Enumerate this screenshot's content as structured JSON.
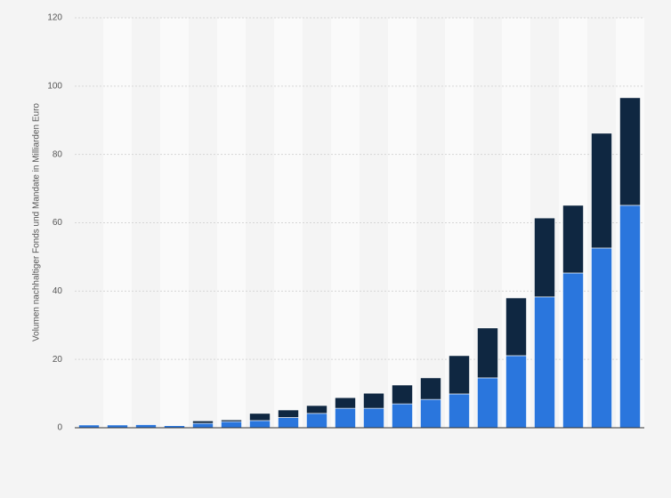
{
  "chart_data": {
    "type": "stacked-bar",
    "y_label": "Volumen nachhaltiger Fonds und Mandate in Milliarden Euro",
    "categories": [
      null,
      null,
      null,
      null,
      null,
      null,
      null,
      null,
      null,
      null,
      null,
      null,
      null,
      null,
      null,
      null,
      null,
      null,
      null,
      null
    ],
    "series": [
      {
        "color": "#2a76dd",
        "values": [
          0.8,
          0.8,
          0.9,
          0.6,
          1.3,
          1.8,
          2.1,
          3.0,
          4.2,
          5.7,
          5.7,
          7.0,
          8.3,
          9.9,
          14.6,
          21.1,
          38.3,
          45.3,
          52.6,
          65.1
        ]
      },
      {
        "color": "#0f2741",
        "values": [
          0,
          0,
          0,
          0,
          0.7,
          0.5,
          2.1,
          2.2,
          2.3,
          3.1,
          4.4,
          5.5,
          6.3,
          11.2,
          14.6,
          16.9,
          23.1,
          19.8,
          33.6,
          31.5
        ]
      }
    ],
    "ylim": [
      0,
      120
    ],
    "yticks": [
      0,
      20,
      40,
      60,
      80,
      100,
      120
    ],
    "grid": true
  }
}
